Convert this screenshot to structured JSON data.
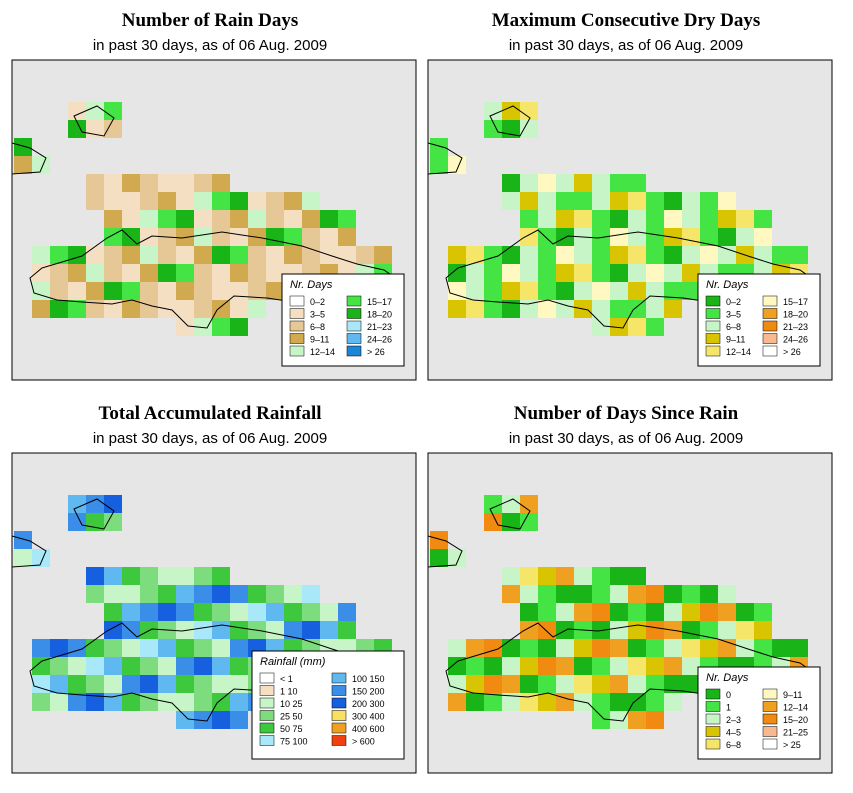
{
  "panels": [
    {
      "title": "Number of Rain Days",
      "subtitle": "in past 30 days, as of  06 Aug. 2009",
      "legend": {
        "title": "Nr. Days",
        "items": [
          {
            "label": "0–2",
            "color": "#ffffff"
          },
          {
            "label": "3–5",
            "color": "#f5dfc2"
          },
          {
            "label": "6–8",
            "color": "#e5c896"
          },
          {
            "label": "9–11",
            "color": "#d1a94f"
          },
          {
            "label": "12–14",
            "color": "#c8f5c8"
          },
          {
            "label": "15–17",
            "color": "#45e445"
          },
          {
            "label": "18–20",
            "color": "#18b418"
          },
          {
            "label": "21–23",
            "color": "#a8e8f8"
          },
          {
            "label": "24–26",
            "color": "#60b8f0"
          },
          {
            "label": "> 26",
            "color": "#1b86d6"
          }
        ]
      }
    },
    {
      "title": "Maximum Consecutive Dry Days",
      "subtitle": "in past 30 days, as of  06 Aug. 2009",
      "legend": {
        "title": "Nr. Days",
        "items": [
          {
            "label": "0–2",
            "color": "#18b418"
          },
          {
            "label": "3–5",
            "color": "#45e445"
          },
          {
            "label": "6–8",
            "color": "#c8f5c8"
          },
          {
            "label": "9–11",
            "color": "#d8c400"
          },
          {
            "label": "12–14",
            "color": "#f5e66a"
          },
          {
            "label": "15–17",
            "color": "#fff8c0"
          },
          {
            "label": "18–20",
            "color": "#f0a020"
          },
          {
            "label": "21–23",
            "color": "#f08a10"
          },
          {
            "label": "24–26",
            "color": "#f8b890"
          },
          {
            "label": "> 26",
            "color": "#ffffff"
          }
        ]
      }
    },
    {
      "title": "Total Accumulated Rainfall",
      "subtitle": "in past 30 days, as of  06 Aug. 2009",
      "legend": {
        "title": "Rainfall (mm)",
        "items": [
          {
            "label": "< 1",
            "color": "#ffffff"
          },
          {
            "label": "1     10",
            "color": "#f5dfc2"
          },
          {
            "label": "10     25",
            "color": "#c8f5c8"
          },
          {
            "label": "25     50",
            "color": "#7ddc7d"
          },
          {
            "label": "50     75",
            "color": "#3ec83e"
          },
          {
            "label": "75   100",
            "color": "#a8e8f8"
          },
          {
            "label": "100   150",
            "color": "#60b8f0"
          },
          {
            "label": "150   200",
            "color": "#3a8ee8"
          },
          {
            "label": "200   300",
            "color": "#1660e0"
          },
          {
            "label": "300   400",
            "color": "#f8e060"
          },
          {
            "label": "400   600",
            "color": "#f0a020"
          },
          {
            "label": "> 600",
            "color": "#f04010"
          }
        ]
      }
    },
    {
      "title": "Number of Days Since Rain",
      "subtitle": "in past 30 days, as of  06 Aug. 2009",
      "legend": {
        "title": "Nr. Days",
        "items": [
          {
            "label": "0",
            "color": "#18b418"
          },
          {
            "label": "1",
            "color": "#45e445"
          },
          {
            "label": "2–3",
            "color": "#c8f5c8"
          },
          {
            "label": "4–5",
            "color": "#d8c400"
          },
          {
            "label": "6–8",
            "color": "#f5e66a"
          },
          {
            "label": "9–11",
            "color": "#fff8c0"
          },
          {
            "label": "12–14",
            "color": "#f0a020"
          },
          {
            "label": "15–20",
            "color": "#f08a10"
          },
          {
            "label": "21–25",
            "color": "#f8b890"
          },
          {
            "label": "> 25",
            "color": "#ffffff"
          }
        ]
      }
    }
  ],
  "colors": {
    "ocean": "#e6e6e6",
    "coast": "#000000"
  }
}
